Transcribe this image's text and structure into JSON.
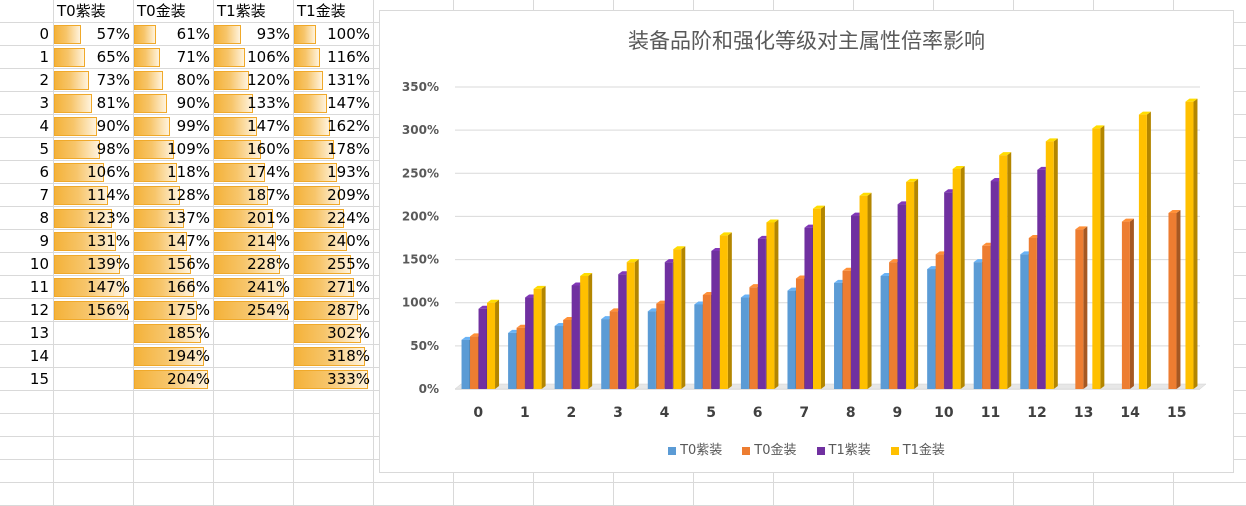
{
  "sheet": {
    "headers": [
      "T0紫装",
      "T0金装",
      "T1紫装",
      "T1金装"
    ],
    "rows": [
      {
        "label": "0",
        "values": [
          "57%",
          "61%",
          "93%",
          "100%"
        ]
      },
      {
        "label": "1",
        "values": [
          "65%",
          "71%",
          "106%",
          "116%"
        ]
      },
      {
        "label": "2",
        "values": [
          "73%",
          "80%",
          "120%",
          "131%"
        ]
      },
      {
        "label": "3",
        "values": [
          "81%",
          "90%",
          "133%",
          "147%"
        ]
      },
      {
        "label": "4",
        "values": [
          "90%",
          "99%",
          "147%",
          "162%"
        ]
      },
      {
        "label": "5",
        "values": [
          "98%",
          "109%",
          "160%",
          "178%"
        ]
      },
      {
        "label": "6",
        "values": [
          "106%",
          "118%",
          "174%",
          "193%"
        ]
      },
      {
        "label": "7",
        "values": [
          "114%",
          "128%",
          "187%",
          "209%"
        ]
      },
      {
        "label": "8",
        "values": [
          "123%",
          "137%",
          "201%",
          "224%"
        ]
      },
      {
        "label": "9",
        "values": [
          "131%",
          "147%",
          "214%",
          "240%"
        ]
      },
      {
        "label": "10",
        "values": [
          "139%",
          "156%",
          "228%",
          "255%"
        ]
      },
      {
        "label": "11",
        "values": [
          "147%",
          "166%",
          "241%",
          "271%"
        ]
      },
      {
        "label": "12",
        "values": [
          "156%",
          "175%",
          "254%",
          "287%"
        ]
      },
      {
        "label": "13",
        "values": [
          "",
          "185%",
          "",
          "302%"
        ]
      },
      {
        "label": "14",
        "values": [
          "",
          "194%",
          "",
          "318%"
        ]
      },
      {
        "label": "15",
        "values": [
          "",
          "204%",
          "",
          "333%"
        ]
      }
    ],
    "databar_color": "#f4b23a"
  },
  "chart_data": {
    "type": "bar",
    "title": "装备品阶和强化等级对主属性倍率影响",
    "categories": [
      "0",
      "1",
      "2",
      "3",
      "4",
      "5",
      "6",
      "7",
      "8",
      "9",
      "10",
      "11",
      "12",
      "13",
      "14",
      "15"
    ],
    "series": [
      {
        "name": "T0紫装",
        "color": "#5b9bd5",
        "values": [
          57,
          65,
          73,
          81,
          90,
          98,
          106,
          114,
          123,
          131,
          139,
          147,
          156,
          null,
          null,
          null
        ]
      },
      {
        "name": "T0金装",
        "color": "#ed7d31",
        "values": [
          61,
          71,
          80,
          90,
          99,
          109,
          118,
          128,
          137,
          147,
          156,
          166,
          175,
          185,
          194,
          204
        ]
      },
      {
        "name": "T1紫装",
        "color": "#7030a0",
        "values": [
          93,
          106,
          120,
          133,
          147,
          160,
          174,
          187,
          201,
          214,
          228,
          241,
          254,
          null,
          null,
          null
        ]
      },
      {
        "name": "T1金装",
        "color": "#ffc000",
        "values": [
          100,
          116,
          131,
          147,
          162,
          178,
          193,
          209,
          224,
          240,
          255,
          271,
          287,
          302,
          318,
          333
        ]
      }
    ],
    "ylim": [
      0,
      350
    ],
    "yticks": [
      "0%",
      "50%",
      "100%",
      "150%",
      "200%",
      "250%",
      "300%",
      "350%"
    ],
    "grid": true,
    "legend": "bottom"
  }
}
